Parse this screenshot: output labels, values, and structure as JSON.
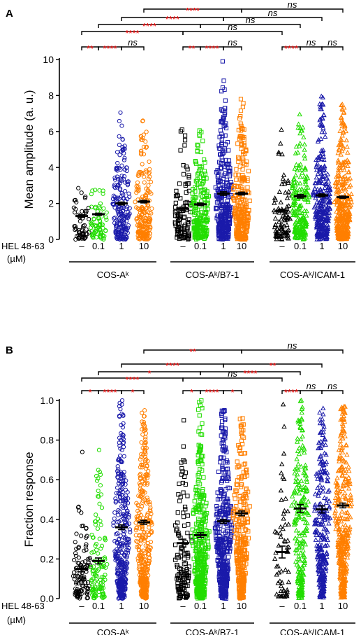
{
  "colors": {
    "black": "#000000",
    "green": "#22dd00",
    "blue": "#1a1aaa",
    "orange": "#ff7f00",
    "sig_red": "#ff0000"
  },
  "chart_data": [
    {
      "panel_label": "A",
      "type": "scatter",
      "ylabel": "Mean amplitude (a. u.)",
      "ylim": [
        0,
        10
      ],
      "yticks": [
        "0",
        "2",
        "4",
        "6",
        "8",
        "10"
      ],
      "x_label_row": "HEL 48-63",
      "x_unit_row": "(µM)",
      "doses": [
        "–",
        "0.1",
        "1",
        "10"
      ],
      "groups": [
        "COS-Aᵏ",
        "COS-Aᵏ/B7-1",
        "COS-Aᵏ/ICAM-1"
      ],
      "marker_by_group": [
        "circle",
        "square",
        "triangle"
      ],
      "color_by_dose": [
        "black",
        "green",
        "blue",
        "orange"
      ],
      "columns": [
        {
          "group": 0,
          "dose": 0,
          "mean": 1.3,
          "sem": 0.07,
          "max": 2.85,
          "n": 60
        },
        {
          "group": 0,
          "dose": 1,
          "mean": 1.4,
          "sem": 0.06,
          "max": 2.75,
          "n": 70
        },
        {
          "group": 0,
          "dose": 2,
          "mean": 2.0,
          "sem": 0.08,
          "max": 7.05,
          "n": 200
        },
        {
          "group": 0,
          "dose": 3,
          "mean": 2.1,
          "sem": 0.07,
          "max": 6.6,
          "n": 200
        },
        {
          "group": 1,
          "dose": 0,
          "mean": 1.7,
          "sem": 0.1,
          "max": 6.1,
          "n": 100
        },
        {
          "group": 1,
          "dose": 1,
          "mean": 1.95,
          "sem": 0.07,
          "max": 6.05,
          "n": 200
        },
        {
          "group": 1,
          "dose": 2,
          "mean": 2.55,
          "sem": 0.1,
          "max": 9.9,
          "n": 320
        },
        {
          "group": 1,
          "dose": 3,
          "mean": 2.55,
          "sem": 0.08,
          "max": 7.8,
          "n": 250
        },
        {
          "group": 2,
          "dose": 0,
          "mean": 1.6,
          "sem": 0.08,
          "max": 6.1,
          "n": 90
        },
        {
          "group": 2,
          "dose": 1,
          "mean": 2.4,
          "sem": 0.1,
          "max": 6.95,
          "n": 220
        },
        {
          "group": 2,
          "dose": 2,
          "mean": 2.45,
          "sem": 0.08,
          "max": 7.95,
          "n": 300
        },
        {
          "group": 2,
          "dose": 3,
          "mean": 2.35,
          "sem": 0.06,
          "max": 7.5,
          "n": 360
        }
      ],
      "brackets": [
        {
          "from": [
            0,
            0
          ],
          "to": [
            0,
            1
          ],
          "level": 0,
          "label": "**",
          "red": true
        },
        {
          "from": [
            0,
            1
          ],
          "to": [
            0,
            2
          ],
          "level": 0,
          "label": "****",
          "red": true
        },
        {
          "from": [
            0,
            2
          ],
          "to": [
            0,
            3
          ],
          "level": 0,
          "label": "ns",
          "red": false
        },
        {
          "from": [
            1,
            0
          ],
          "to": [
            1,
            1
          ],
          "level": 0,
          "label": "**",
          "red": true
        },
        {
          "from": [
            1,
            1
          ],
          "to": [
            1,
            2
          ],
          "level": 0,
          "label": "****",
          "red": true
        },
        {
          "from": [
            1,
            2
          ],
          "to": [
            1,
            3
          ],
          "level": 0,
          "label": "ns",
          "red": false
        },
        {
          "from": [
            2,
            0
          ],
          "to": [
            2,
            1
          ],
          "level": 0,
          "label": "****",
          "red": true
        },
        {
          "from": [
            2,
            1
          ],
          "to": [
            2,
            2
          ],
          "level": 0,
          "label": "ns",
          "red": false
        },
        {
          "from": [
            2,
            2
          ],
          "to": [
            2,
            3
          ],
          "level": 0,
          "label": "ns",
          "red": false
        },
        {
          "from": [
            0,
            0
          ],
          "to": [
            1,
            0
          ],
          "level": 1,
          "label": "****",
          "red": true
        },
        {
          "from": [
            1,
            0
          ],
          "to": [
            2,
            0
          ],
          "level": 1,
          "label": "ns",
          "red": false
        },
        {
          "from": [
            0,
            1
          ],
          "to": [
            1,
            1
          ],
          "level": 2,
          "label": "****",
          "red": true
        },
        {
          "from": [
            1,
            1
          ],
          "to": [
            2,
            1
          ],
          "level": 2,
          "label": "ns",
          "red": false
        },
        {
          "from": [
            0,
            2
          ],
          "to": [
            1,
            2
          ],
          "level": 3,
          "label": "****",
          "red": true
        },
        {
          "from": [
            1,
            2
          ],
          "to": [
            2,
            2
          ],
          "level": 3,
          "label": "ns",
          "red": false
        },
        {
          "from": [
            0,
            3
          ],
          "to": [
            1,
            3
          ],
          "level": 4,
          "label": "****",
          "red": true
        },
        {
          "from": [
            1,
            3
          ],
          "to": [
            2,
            3
          ],
          "level": 4,
          "label": "ns",
          "red": false
        }
      ]
    },
    {
      "panel_label": "B",
      "type": "scatter",
      "ylabel": "Fraction response",
      "ylim": [
        0,
        1
      ],
      "yticks": [
        "0.0",
        "0.2",
        "0.4",
        "0.6",
        "0.8",
        "1.0"
      ],
      "x_label_row": "HEL 48-63",
      "x_unit_row": "(µM)",
      "doses": [
        "–",
        "0.1",
        "1",
        "10"
      ],
      "groups": [
        "COS-Aᵏ",
        "COS-Aᵏ/B7-1",
        "COS-Aᵏ/ICAM-1"
      ],
      "marker_by_group": [
        "circle",
        "square",
        "triangle"
      ],
      "color_by_dose": [
        "black",
        "green",
        "blue",
        "orange"
      ],
      "columns": [
        {
          "group": 0,
          "dose": 0,
          "mean": 0.15,
          "sem": 0.015,
          "max": 0.74,
          "n": 110
        },
        {
          "group": 0,
          "dose": 1,
          "mean": 0.19,
          "sem": 0.015,
          "max": 0.75,
          "n": 120
        },
        {
          "group": 0,
          "dose": 2,
          "mean": 0.36,
          "sem": 0.012,
          "max": 1.0,
          "n": 350
        },
        {
          "group": 0,
          "dose": 3,
          "mean": 0.385,
          "sem": 0.01,
          "max": 0.95,
          "n": 380
        },
        {
          "group": 1,
          "dose": 0,
          "mean": 0.28,
          "sem": 0.02,
          "max": 0.9,
          "n": 130
        },
        {
          "group": 1,
          "dose": 1,
          "mean": 0.32,
          "sem": 0.012,
          "max": 1.0,
          "n": 380
        },
        {
          "group": 1,
          "dose": 2,
          "mean": 0.39,
          "sem": 0.01,
          "max": 0.95,
          "n": 420
        },
        {
          "group": 1,
          "dose": 3,
          "mean": 0.43,
          "sem": 0.012,
          "max": 0.91,
          "n": 330
        },
        {
          "group": 2,
          "dose": 0,
          "mean": 0.235,
          "sem": 0.03,
          "max": 0.98,
          "n": 60
        },
        {
          "group": 2,
          "dose": 1,
          "mean": 0.455,
          "sem": 0.02,
          "max": 1.0,
          "n": 230
        },
        {
          "group": 2,
          "dose": 2,
          "mean": 0.45,
          "sem": 0.018,
          "max": 0.96,
          "n": 300
        },
        {
          "group": 2,
          "dose": 3,
          "mean": 0.47,
          "sem": 0.012,
          "max": 0.97,
          "n": 380
        }
      ],
      "brackets": [
        {
          "from": [
            0,
            0
          ],
          "to": [
            0,
            1
          ],
          "level": 0,
          "label": "*",
          "red": true
        },
        {
          "from": [
            0,
            1
          ],
          "to": [
            0,
            2
          ],
          "level": 0,
          "label": "****",
          "red": true
        },
        {
          "from": [
            0,
            2
          ],
          "to": [
            0,
            3
          ],
          "level": 0,
          "label": "*",
          "red": true
        },
        {
          "from": [
            1,
            0
          ],
          "to": [
            1,
            1
          ],
          "level": 0,
          "label": "*",
          "red": true
        },
        {
          "from": [
            1,
            1
          ],
          "to": [
            1,
            2
          ],
          "level": 0,
          "label": "****",
          "red": true
        },
        {
          "from": [
            1,
            2
          ],
          "to": [
            1,
            3
          ],
          "level": 0,
          "label": "*",
          "red": true
        },
        {
          "from": [
            2,
            0
          ],
          "to": [
            2,
            1
          ],
          "level": 0,
          "label": "****",
          "red": true
        },
        {
          "from": [
            2,
            1
          ],
          "to": [
            2,
            2
          ],
          "level": 0,
          "label": "ns",
          "red": false
        },
        {
          "from": [
            2,
            2
          ],
          "to": [
            2,
            3
          ],
          "level": 0,
          "label": "ns",
          "red": false
        },
        {
          "from": [
            0,
            0
          ],
          "to": [
            1,
            0
          ],
          "level": 1,
          "label": "****",
          "red": true
        },
        {
          "from": [
            1,
            0
          ],
          "to": [
            2,
            0
          ],
          "level": 1,
          "label": "ns",
          "red": false
        },
        {
          "from": [
            0,
            1
          ],
          "to": [
            1,
            1
          ],
          "level": 2,
          "label": "*",
          "red": true
        },
        {
          "from": [
            1,
            1
          ],
          "to": [
            2,
            1
          ],
          "level": 2,
          "label": "****",
          "red": true
        },
        {
          "from": [
            0,
            2
          ],
          "to": [
            1,
            2
          ],
          "level": 3,
          "label": "****",
          "red": true
        },
        {
          "from": [
            1,
            2
          ],
          "to": [
            2,
            2
          ],
          "level": 3,
          "label": "**",
          "red": true
        },
        {
          "from": [
            0,
            3
          ],
          "to": [
            1,
            3
          ],
          "level": 4,
          "label": "**",
          "red": true
        },
        {
          "from": [
            1,
            3
          ],
          "to": [
            2,
            3
          ],
          "level": 4,
          "label": "ns",
          "red": false
        }
      ]
    }
  ]
}
